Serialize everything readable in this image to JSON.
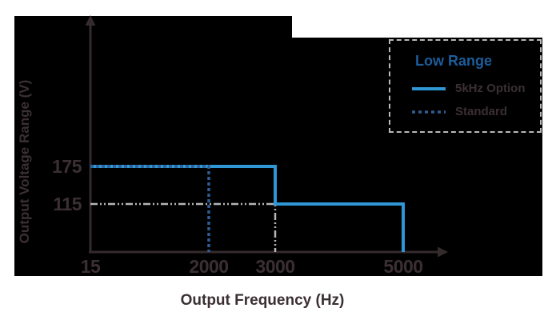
{
  "colors": {
    "page_bg": "#ffffff",
    "chart_bg": "#000000",
    "text": "#3b2f33",
    "axis": "#352a2c",
    "legend_border": "#b8b8b8",
    "legend_title": "#1d5c9b"
  },
  "chart_data": {
    "type": "line",
    "title": "",
    "xlabel": "Output Frequency (Hz)",
    "ylabel": "Output Voltage Range (V)",
    "x_tick_values": [
      15,
      2000,
      3000,
      5000
    ],
    "x_tick_labels": [
      "15",
      "2000",
      "3000",
      "5000"
    ],
    "y_tick_values": [
      175,
      115
    ],
    "y_tick_labels": [
      "175",
      "115"
    ],
    "xlim": [
      15,
      5600
    ],
    "ylim": [
      0,
      260
    ],
    "grid": false,
    "legend": {
      "position": "top-right",
      "title": "Low Range",
      "entries": [
        "5kHz Option",
        "Standard"
      ]
    },
    "series": [
      {
        "name": "5kHz Option",
        "color": "#2e97d4",
        "line_style": "solid",
        "width": 4,
        "in_legend": true,
        "points": [
          [
            15,
            175
          ],
          [
            3000,
            175
          ],
          [
            3000,
            115
          ],
          [
            5000,
            115
          ],
          [
            5000,
            0
          ]
        ]
      },
      {
        "name": "Standard",
        "color": "#2c5d96",
        "line_style": "dashed",
        "width": 3.5,
        "in_legend": true,
        "points": [
          [
            15,
            175
          ],
          [
            2000,
            175
          ],
          [
            2000,
            0
          ]
        ]
      },
      {
        "name": "115 V guide",
        "color": "#b5b5b5",
        "line_style": "dash-dot-dot",
        "width": 2.5,
        "in_legend": false,
        "points": [
          [
            15,
            115
          ],
          [
            3000,
            115
          ],
          [
            3000,
            0
          ]
        ]
      }
    ]
  }
}
